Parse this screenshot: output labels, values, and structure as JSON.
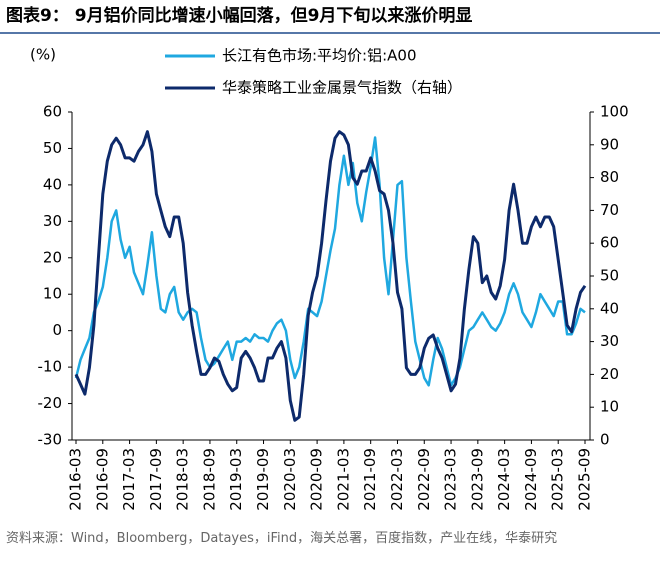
{
  "chart_data": {
    "type": "line",
    "title": "图表9：  9月铝价同比增速小幅回落，但9月下旬以来涨价明显",
    "y_label": "(%)",
    "source": "资料来源：Wind，Bloomberg，Datayes，iFind，海关总署，百度指数，产业在线，华泰研究",
    "categories": [
      "2016-03",
      null,
      null,
      null,
      null,
      null,
      "2016-09",
      null,
      null,
      null,
      null,
      null,
      "2017-03",
      null,
      null,
      null,
      null,
      null,
      "2017-09",
      null,
      null,
      null,
      null,
      null,
      "2018-03",
      null,
      null,
      null,
      null,
      null,
      "2018-09",
      null,
      null,
      null,
      null,
      null,
      "2019-03",
      null,
      null,
      null,
      null,
      null,
      "2019-09",
      null,
      null,
      null,
      null,
      null,
      "2020-03",
      null,
      null,
      null,
      null,
      null,
      "2020-09",
      null,
      null,
      null,
      null,
      null,
      "2021-03",
      null,
      null,
      null,
      null,
      null,
      "2021-09",
      null,
      null,
      null,
      null,
      null,
      "2022-03",
      null,
      null,
      null,
      null,
      null,
      "2022-09",
      null,
      null,
      null,
      null,
      null,
      "2023-03",
      null,
      null,
      null,
      null,
      null,
      "2023-09",
      null,
      null,
      null,
      null,
      null,
      "2024-03",
      null,
      null,
      null,
      null,
      null,
      "2024-09",
      null,
      null,
      null,
      null,
      null,
      "2025-03",
      null,
      null,
      null,
      null,
      null,
      "2025-09"
    ],
    "series": [
      {
        "name": "长江有色市场:平均价:铝:A00",
        "color": "#1fa8e0",
        "axis": "y",
        "values": [
          -13,
          -8,
          -5,
          -2,
          5,
          8,
          12,
          20,
          30,
          33,
          25,
          20,
          23,
          16,
          13,
          10,
          18,
          27,
          15,
          6,
          5,
          10,
          12,
          5,
          3,
          5,
          6,
          5,
          -2,
          -8,
          -10,
          -9,
          -7,
          -5,
          -3,
          -8,
          -3,
          -3,
          -2,
          -3,
          -1,
          -2,
          -2,
          -3,
          0,
          2,
          3,
          0,
          -8,
          -13,
          -10,
          -3,
          6,
          5,
          4,
          8,
          15,
          22,
          28,
          40,
          48,
          40,
          46,
          35,
          30,
          38,
          45,
          53,
          40,
          20,
          10,
          25,
          40,
          41,
          20,
          8,
          -3,
          -8,
          -13,
          -15,
          -8,
          -2,
          -5,
          -10,
          -15,
          -13,
          -10,
          -5,
          0,
          1,
          3,
          5,
          3,
          1,
          0,
          2,
          5,
          10,
          13,
          10,
          5,
          3,
          1,
          5,
          10,
          8,
          6,
          4,
          8,
          8,
          -1,
          -1,
          2,
          6,
          5
        ]
      },
      {
        "name": "华泰策略工业金属景气指数（右轴）",
        "color": "#0d2a6b",
        "axis": "y2",
        "values": [
          20,
          17,
          14,
          22,
          35,
          55,
          75,
          85,
          90,
          92,
          90,
          86,
          86,
          85,
          88,
          90,
          94,
          88,
          75,
          70,
          65,
          62,
          68,
          68,
          60,
          45,
          35,
          27,
          20,
          20,
          22,
          25,
          24,
          20,
          17,
          15,
          16,
          25,
          27,
          25,
          22,
          18,
          18,
          25,
          25,
          28,
          30,
          25,
          12,
          6,
          7,
          20,
          38,
          45,
          50,
          60,
          73,
          85,
          92,
          94,
          93,
          90,
          80,
          78,
          82,
          82,
          86,
          82,
          76,
          75,
          70,
          60,
          45,
          40,
          22,
          20,
          20,
          22,
          28,
          31,
          32,
          28,
          25,
          20,
          15,
          17,
          25,
          40,
          52,
          62,
          60,
          48,
          50,
          45,
          43,
          47,
          55,
          70,
          78,
          70,
          60,
          60,
          65,
          68,
          65,
          68,
          68,
          65,
          55,
          45,
          35,
          33,
          40,
          45,
          47
        ]
      }
    ],
    "ylim": [
      -30,
      60
    ],
    "yticks": [
      -30,
      -20,
      -10,
      0,
      10,
      20,
      30,
      40,
      50,
      60
    ],
    "y2lim": [
      0,
      100
    ],
    "y2ticks": [
      0,
      10,
      20,
      30,
      40,
      50,
      60,
      70,
      80,
      90,
      100
    ]
  }
}
